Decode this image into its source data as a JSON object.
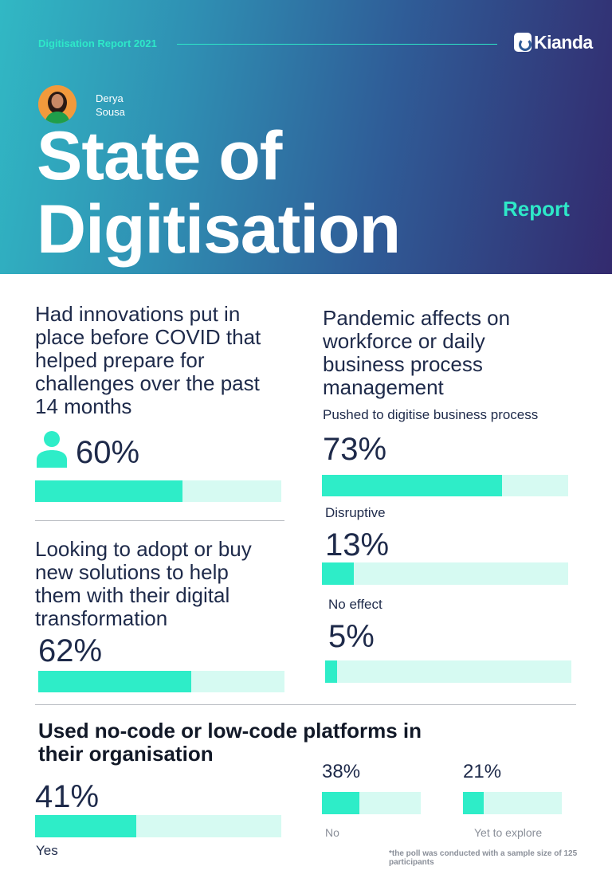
{
  "header": {
    "label": "Digitisation Report 2021",
    "brand": "Kianda",
    "author_first": "Derya",
    "author_last": "Sousa",
    "title_line1": "State of",
    "title_line2": "Digitisation",
    "report_word": "Report"
  },
  "chart_data": [
    {
      "type": "bar",
      "title": "Had innovations put in place before COVID that helped prepare for challenges over the past 14 months",
      "series": [
        {
          "values": [
            60
          ]
        }
      ],
      "labels": [
        "60%"
      ],
      "ylim": [
        0,
        100
      ]
    },
    {
      "type": "bar",
      "title": "Looking to adopt or buy new solutions to help them with their digital transformation",
      "series": [
        {
          "values": [
            62
          ]
        }
      ],
      "labels": [
        "62%"
      ],
      "ylim": [
        0,
        100
      ]
    },
    {
      "type": "bar",
      "title": "Pandemic affects on workforce or daily business process management",
      "categories": [
        "Pushed to digitise business process",
        "Disruptive",
        "No effect"
      ],
      "values": [
        73,
        13,
        5
      ],
      "labels": [
        "73%",
        "13%",
        "5%"
      ],
      "ylim": [
        0,
        100
      ]
    },
    {
      "type": "bar",
      "title": "Used no-code or low-code platforms in their organisation",
      "categories": [
        "Yes",
        "No",
        "Yet to explore"
      ],
      "values": [
        41,
        38,
        21
      ],
      "labels": [
        "41%",
        "38%",
        "21%"
      ],
      "ylim": [
        0,
        100
      ]
    }
  ],
  "questions": {
    "q1_lines": [
      "Had innovations put in",
      "place before COVID that",
      "helped prepare for",
      "challenges over the past",
      "14 months"
    ],
    "q2_lines": [
      "Looking to adopt or buy",
      "new solutions to help",
      "them with their digital",
      "transformation"
    ],
    "q3_lines": [
      "Pandemic affects on",
      "workforce or daily",
      "business process",
      "management"
    ],
    "q4_lines": [
      "Used no-code or low-code platforms in",
      "their organisation"
    ]
  },
  "footnote": "*the poll was conducted with a sample size of 125 participants",
  "colors": {
    "accent": "#2eedc8",
    "track": "#d6faf2",
    "text_dark": "#1e2a4a",
    "header_start": "#31b8c4",
    "header_end": "#332a6e"
  },
  "icons": [
    "person-icon",
    "kianda-logo-icon",
    "author-avatar"
  ]
}
